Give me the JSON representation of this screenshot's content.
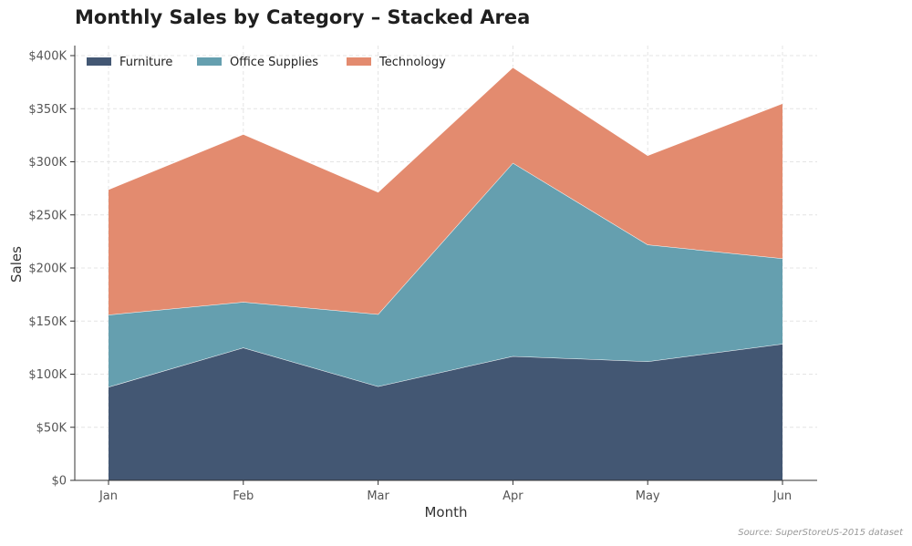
{
  "chart_data": {
    "type": "area",
    "stacked": true,
    "title": "Monthly Sales by Category – Stacked Area",
    "xlabel": "Month",
    "ylabel": "Sales",
    "categories": [
      "Jan",
      "Feb",
      "Mar",
      "Apr",
      "May",
      "Jun"
    ],
    "ylim": [
      0,
      400000
    ],
    "yticks": [
      0,
      50000,
      100000,
      150000,
      200000,
      250000,
      300000,
      350000,
      400000
    ],
    "ytick_labels": [
      "$0",
      "$50K",
      "$100K",
      "$150K",
      "$200K",
      "$250K",
      "$300K",
      "$350K",
      "$400K"
    ],
    "grid": true,
    "legend_position": "top-left",
    "series": [
      {
        "name": "Furniture",
        "color": "#435773",
        "values": [
          88000,
          125000,
          88500,
          117000,
          112000,
          128500
        ]
      },
      {
        "name": "Office Supplies",
        "color": "#659faf",
        "values": [
          68000,
          43000,
          68000,
          182000,
          110000,
          80500
        ]
      },
      {
        "name": "Technology",
        "color": "#e38b6f",
        "values": [
          118000,
          158000,
          115000,
          90000,
          84000,
          146000
        ]
      }
    ],
    "source": "Source: SuperStoreUS-2015 dataset"
  }
}
